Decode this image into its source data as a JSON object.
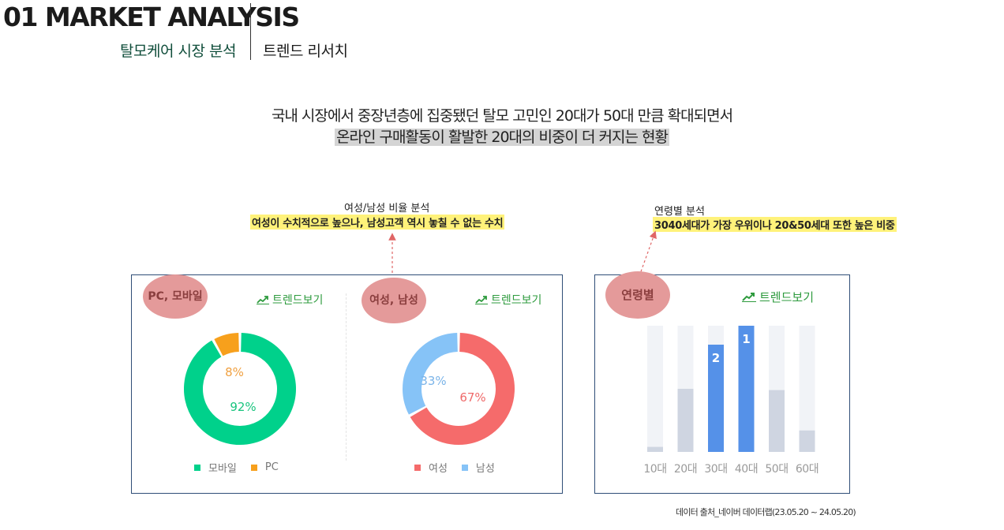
{
  "header": {
    "title": "01 MARKET ANALYSIS",
    "subtitle_main": "탈모케어 시장 분석",
    "subtitle_sub": "트렌드 리서치"
  },
  "headline": {
    "line1": "국내 시장에서 중장년층에 집중됐던 탈모 고민인 20대가 50대 만큼 확대되면서",
    "line2": "온라인 구매활동이 활발한 20대의 비중이 더 커지는 현황"
  },
  "annotations": {
    "gender": {
      "label": "여성/남성 비율 분석",
      "highlight": "여성이 수치적으로 높으나, 남성고객 역시 놓칠 수 없는 수치"
    },
    "age": {
      "label": "연령별 분석",
      "highlight": "3040세대가 가장 우위이나 20&50세대 또한 높은 비중"
    }
  },
  "panel_device": {
    "pill": "PC, 모바일",
    "trend_label": "트렌드보기",
    "colors": {
      "mobile": "#00d18b",
      "pc": "#f7a01c"
    },
    "legend": [
      "모바일",
      "PC"
    ]
  },
  "panel_gender": {
    "pill": "여성, 남성",
    "trend_label": "트렌드보기",
    "colors": {
      "female": "#f56b6b",
      "male": "#86c3f7"
    },
    "legend": [
      "여성",
      "남성"
    ]
  },
  "panel_age": {
    "pill": "연령별",
    "trend_label": "트렌드보기",
    "colors": {
      "bar": "#5591e8",
      "bar_muted": "#cfd5e1",
      "track": "#f1f3f7"
    }
  },
  "chart_data": [
    {
      "type": "pie",
      "categories": [
        "모바일",
        "PC"
      ],
      "values": [
        92,
        8
      ],
      "value_labels": [
        "92%",
        "8%"
      ],
      "legend": "bottom"
    },
    {
      "type": "pie",
      "categories": [
        "여성",
        "남성"
      ],
      "values": [
        67,
        33
      ],
      "value_labels": [
        "67%",
        "33%"
      ],
      "legend": "bottom"
    },
    {
      "type": "bar",
      "categories": [
        "10대",
        "20대",
        "30대",
        "40대",
        "50대",
        "60대"
      ],
      "values": [
        4,
        50,
        85,
        100,
        49,
        17
      ],
      "ranks": {
        "30대": "2",
        "40대": "1"
      },
      "highlighted": [
        "30대",
        "40대"
      ],
      "ylim": [
        0,
        100
      ]
    }
  ],
  "footer": {
    "source": "데이터 출처_네이버 데이터랩(23.05.20 ~ 24.05.20)"
  }
}
